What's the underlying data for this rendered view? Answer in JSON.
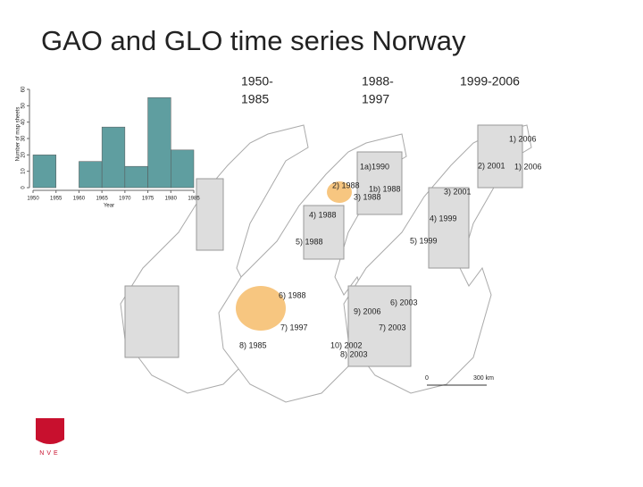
{
  "title": "GAO and GLO time series Norway",
  "column_labels": [
    [
      "1950-",
      "1985"
    ],
    [
      "1988-",
      "1997"
    ],
    [
      "1999-2006"
    ]
  ],
  "chart_data": {
    "type": "histogram",
    "x_label": "Year",
    "y_label": "Number of map sheets",
    "bins": [
      1950,
      1955,
      1960,
      1965,
      1970,
      1975,
      1980,
      1985
    ],
    "values": [
      20,
      0,
      16,
      37,
      13,
      55,
      23
    ],
    "color": "#5f9ea0",
    "xlim": [
      1950,
      1985
    ],
    "xticks": [
      1950,
      1955,
      1960,
      1965,
      1970,
      1975,
      1980,
      1985
    ],
    "ylim": [
      0,
      60
    ],
    "yticks": [
      0,
      10,
      20,
      30,
      40,
      50,
      60
    ]
  },
  "map_labels": {
    "middle": [
      "1a)1990",
      "2) 1988",
      "1b) 1988",
      "3) 1988",
      "4) 1988",
      "5) 1988",
      "6) 1988",
      "7) 1997",
      "8) 1985"
    ],
    "right": [
      "1) 2006",
      "2) 2001",
      "1) 2006",
      "3) 2001",
      "4) 1999",
      "5) 1999",
      "6) 2003",
      "9) 2006",
      "7) 2003",
      "10) 2002",
      "8) 2003"
    ]
  },
  "scale_labels": [
    "0",
    "300 km"
  ],
  "logo": "NVE"
}
